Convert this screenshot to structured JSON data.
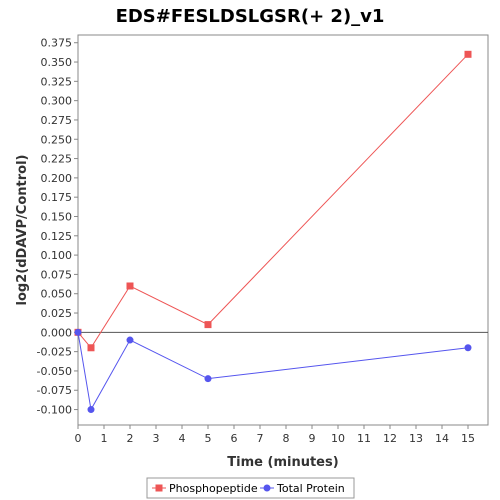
{
  "chart_data": {
    "type": "line",
    "title": "EDS#FESLDSLGSR(+ 2)_v1",
    "xlabel": "Time (minutes)",
    "ylabel": "log2(dDAVP/Control)",
    "x_tick_labels": [
      "0",
      "1",
      "2",
      "3",
      "4",
      "5",
      "6",
      "7",
      "8",
      "9",
      "10",
      "11",
      "12",
      "13",
      "14",
      "15"
    ],
    "y_tick_values": [
      -0.1,
      -0.075,
      -0.05,
      -0.025,
      0.0,
      0.025,
      0.05,
      0.075,
      0.1,
      0.125,
      0.15,
      0.175,
      0.2,
      0.225,
      0.25,
      0.275,
      0.3,
      0.325,
      0.35,
      0.375
    ],
    "y_tick_labels": [
      "-0.100",
      "-0.075",
      "-0.050",
      "-0.025",
      "0.000",
      "0.025",
      "0.050",
      "0.075",
      "0.100",
      "0.125",
      "0.150",
      "0.175",
      "0.200",
      "0.225",
      "0.250",
      "0.275",
      "0.300",
      "0.325",
      "0.350",
      "0.375"
    ],
    "ylim": [
      -0.12,
      0.385
    ],
    "zero_line": true,
    "legend_position": "bottom",
    "series": [
      {
        "name": "Phosphopeptide",
        "color": "#ee5555",
        "marker": "square",
        "x": [
          "0",
          "0.5",
          "2",
          "5",
          "15"
        ],
        "y": [
          0.0,
          -0.02,
          0.06,
          0.01,
          0.36
        ]
      },
      {
        "name": "Total Protein",
        "color": "#5555ee",
        "marker": "circle",
        "x": [
          "0",
          "0.5",
          "2",
          "5",
          "15"
        ],
        "y": [
          0.0,
          -0.1,
          -0.01,
          -0.06,
          -0.02
        ]
      }
    ]
  }
}
